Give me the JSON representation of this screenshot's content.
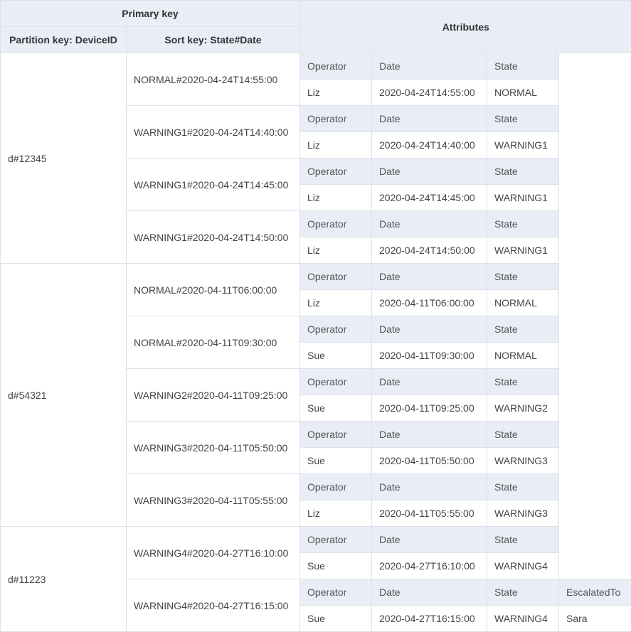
{
  "header": {
    "primary_key": "Primary key",
    "partition_key": "Partition key: DeviceID",
    "sort_key": "Sort key: State#Date",
    "attributes": "Attributes"
  },
  "colors": {
    "header_bg": "#e9edf5",
    "border": "#dde1e8",
    "text": "#444444"
  },
  "partitions": [
    {
      "device_id": "d#12345",
      "items": [
        {
          "sort_key": "NORMAL#2020-04-24T14:55:00",
          "attributes": [
            {
              "name": "Operator",
              "value": "Liz"
            },
            {
              "name": "Date",
              "value": "2020-04-24T14:55:00"
            },
            {
              "name": "State",
              "value": "NORMAL"
            }
          ]
        },
        {
          "sort_key": "WARNING1#2020-04-24T14:40:00",
          "attributes": [
            {
              "name": "Operator",
              "value": "Liz"
            },
            {
              "name": "Date",
              "value": "2020-04-24T14:40:00"
            },
            {
              "name": "State",
              "value": "WARNING1"
            }
          ]
        },
        {
          "sort_key": "WARNING1#2020-04-24T14:45:00",
          "attributes": [
            {
              "name": "Operator",
              "value": "Liz"
            },
            {
              "name": "Date",
              "value": "2020-04-24T14:45:00"
            },
            {
              "name": "State",
              "value": "WARNING1"
            }
          ]
        },
        {
          "sort_key": "WARNING1#2020-04-24T14:50:00",
          "attributes": [
            {
              "name": "Operator",
              "value": "Liz"
            },
            {
              "name": "Date",
              "value": "2020-04-24T14:50:00"
            },
            {
              "name": "State",
              "value": "WARNING1"
            }
          ]
        }
      ]
    },
    {
      "device_id": "d#54321",
      "items": [
        {
          "sort_key": "NORMAL#2020-04-11T06:00:00",
          "attributes": [
            {
              "name": "Operator",
              "value": "Liz"
            },
            {
              "name": "Date",
              "value": "2020-04-11T06:00:00"
            },
            {
              "name": "State",
              "value": "NORMAL"
            }
          ]
        },
        {
          "sort_key": "NORMAL#2020-04-11T09:30:00",
          "attributes": [
            {
              "name": "Operator",
              "value": "Sue"
            },
            {
              "name": "Date",
              "value": "2020-04-11T09:30:00"
            },
            {
              "name": "State",
              "value": "NORMAL"
            }
          ]
        },
        {
          "sort_key": "WARNING2#2020-04-11T09:25:00",
          "attributes": [
            {
              "name": "Operator",
              "value": "Sue"
            },
            {
              "name": "Date",
              "value": "2020-04-11T09:25:00"
            },
            {
              "name": "State",
              "value": "WARNING2"
            }
          ]
        },
        {
          "sort_key": "WARNING3#2020-04-11T05:50:00",
          "attributes": [
            {
              "name": "Operator",
              "value": "Sue"
            },
            {
              "name": "Date",
              "value": "2020-04-11T05:50:00"
            },
            {
              "name": "State",
              "value": "WARNING3"
            }
          ]
        },
        {
          "sort_key": "WARNING3#2020-04-11T05:55:00",
          "attributes": [
            {
              "name": "Operator",
              "value": "Liz"
            },
            {
              "name": "Date",
              "value": "2020-04-11T05:55:00"
            },
            {
              "name": "State",
              "value": "WARNING3"
            }
          ]
        }
      ]
    },
    {
      "device_id": "d#11223",
      "items": [
        {
          "sort_key": "WARNING4#2020-04-27T16:10:00",
          "attributes": [
            {
              "name": "Operator",
              "value": "Sue"
            },
            {
              "name": "Date",
              "value": "2020-04-27T16:10:00"
            },
            {
              "name": "State",
              "value": "WARNING4"
            }
          ]
        },
        {
          "sort_key": "WARNING4#2020-04-27T16:15:00",
          "attributes": [
            {
              "name": "Operator",
              "value": "Sue"
            },
            {
              "name": "Date",
              "value": "2020-04-27T16:15:00"
            },
            {
              "name": "State",
              "value": "WARNING4"
            },
            {
              "name": "EscalatedTo",
              "value": "Sara"
            }
          ]
        }
      ]
    }
  ]
}
